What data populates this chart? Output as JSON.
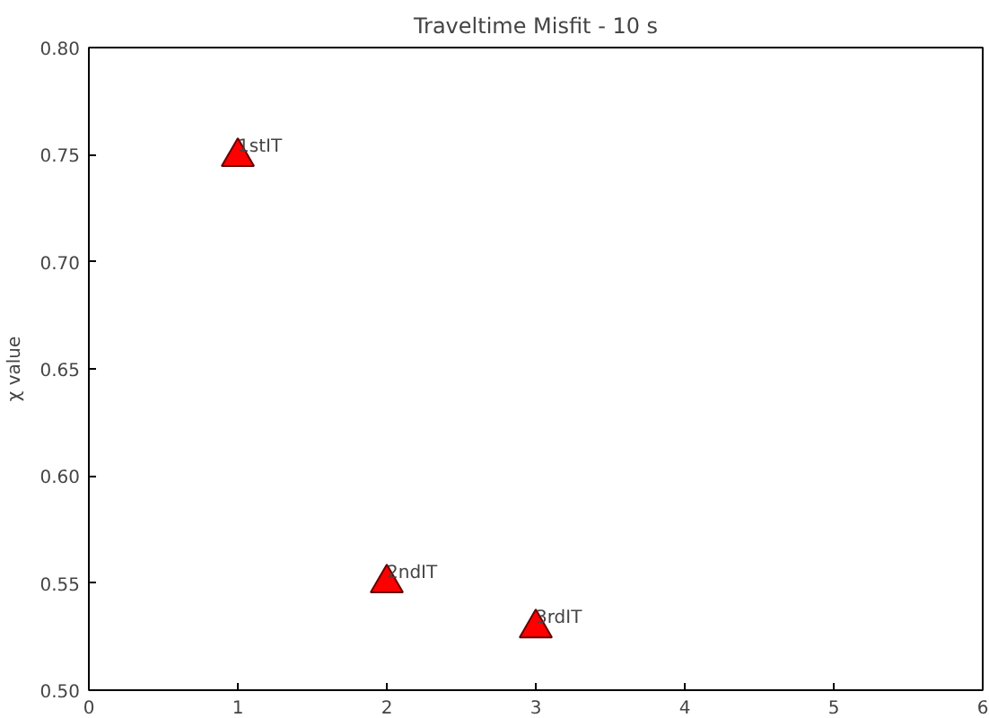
{
  "chart_data": {
    "type": "scatter",
    "title": "Traveltime Misfit - 10 s",
    "ylabel": "χ value",
    "x": [
      1,
      2,
      3
    ],
    "values": [
      0.749,
      0.55,
      0.529
    ],
    "color": "#ff0000",
    "marker": "triangle",
    "xlim": [
      0,
      6
    ],
    "ylim": [
      0.5,
      0.8
    ],
    "xticks": [
      0,
      1,
      2,
      3,
      4,
      5,
      6
    ],
    "yticks": [
      {
        "value": 0.5,
        "label": "0.50"
      },
      {
        "value": 0.55,
        "label": "0.55"
      },
      {
        "value": 0.6,
        "label": "0.60"
      },
      {
        "value": 0.65,
        "label": "0.65"
      },
      {
        "value": 0.7,
        "label": "0.70"
      },
      {
        "value": 0.75,
        "label": "0.75"
      },
      {
        "value": 0.8,
        "label": "0.80"
      }
    ],
    "grid": false,
    "annotations": [
      {
        "text": "1stIT",
        "x": 1,
        "y": 0.749
      },
      {
        "text": "2ndIT",
        "x": 2,
        "y": 0.55
      },
      {
        "text": "3rdIT",
        "x": 3,
        "y": 0.529
      }
    ]
  }
}
